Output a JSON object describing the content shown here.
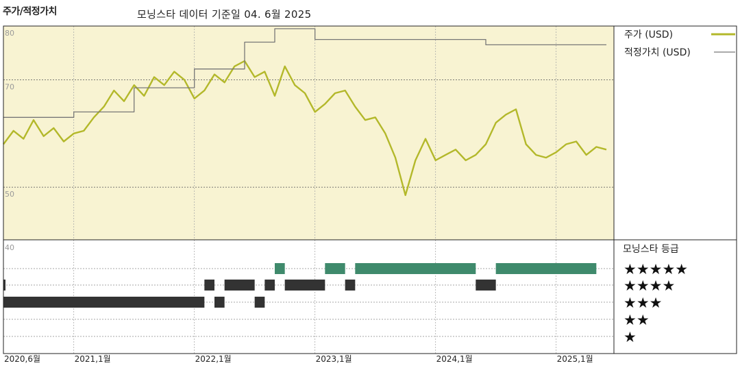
{
  "title": "주가/적정가치",
  "subtitle": "모닝스타 데이터 기준일 04. 6월 2025",
  "colors": {
    "price": "#b3b82a",
    "fair_value": "#777777",
    "plot_bg": "#f8f3d2",
    "grid": "#666666",
    "rating_band_5": "#3f8a6c",
    "rating_band_other": "#333333"
  },
  "chart_data": [
    {
      "type": "line",
      "x_range": [
        "2020-06",
        "2025-06"
      ],
      "ylim": [
        40,
        80
      ],
      "yticks": [
        80,
        70,
        50,
        40
      ],
      "xticks": [
        "2020,6월",
        "2021,1월",
        "2022,1월",
        "2023,1월",
        "2024,1월",
        "2025,1월"
      ],
      "grid": true,
      "legend_position": "right",
      "series": [
        {
          "name": "주가 (USD)",
          "color": "#b3b82a",
          "points": [
            [
              "2020-06",
              58.0
            ],
            [
              "2020-07",
              60.5
            ],
            [
              "2020-08",
              59.0
            ],
            [
              "2020-09",
              62.5
            ],
            [
              "2020-10",
              59.5
            ],
            [
              "2020-11",
              61.0
            ],
            [
              "2020-12",
              58.5
            ],
            [
              "2021-01",
              60.0
            ],
            [
              "2021-02",
              60.5
            ],
            [
              "2021-03",
              63.0
            ],
            [
              "2021-04",
              65.0
            ],
            [
              "2021-05",
              68.0
            ],
            [
              "2021-06",
              66.0
            ],
            [
              "2021-07",
              69.0
            ],
            [
              "2021-08",
              67.0
            ],
            [
              "2021-09",
              70.5
            ],
            [
              "2021-10",
              69.0
            ],
            [
              "2021-11",
              71.5
            ],
            [
              "2021-12",
              70.0
            ],
            [
              "2022-01",
              66.5
            ],
            [
              "2022-02",
              68.0
            ],
            [
              "2022-03",
              71.0
            ],
            [
              "2022-04",
              69.5
            ],
            [
              "2022-05",
              72.5
            ],
            [
              "2022-06",
              73.5
            ],
            [
              "2022-07",
              70.5
            ],
            [
              "2022-08",
              71.5
            ],
            [
              "2022-09",
              67.0
            ],
            [
              "2022-10",
              72.5
            ],
            [
              "2022-11",
              69.0
            ],
            [
              "2022-12",
              67.5
            ],
            [
              "2023-01",
              64.0
            ],
            [
              "2023-02",
              65.5
            ],
            [
              "2023-03",
              67.5
            ],
            [
              "2023-04",
              68.0
            ],
            [
              "2023-05",
              65.0
            ],
            [
              "2023-06",
              62.5
            ],
            [
              "2023-07",
              63.0
            ],
            [
              "2023-08",
              60.0
            ],
            [
              "2023-09",
              55.5
            ],
            [
              "2023-10",
              48.5
            ],
            [
              "2023-11",
              55.0
            ],
            [
              "2023-12",
              59.0
            ],
            [
              "2024-01",
              55.0
            ],
            [
              "2024-02",
              56.0
            ],
            [
              "2024-03",
              57.0
            ],
            [
              "2024-04",
              55.0
            ],
            [
              "2024-05",
              56.0
            ],
            [
              "2024-06",
              58.0
            ],
            [
              "2024-07",
              62.0
            ],
            [
              "2024-08",
              63.5
            ],
            [
              "2024-09",
              64.5
            ],
            [
              "2024-10",
              58.0
            ],
            [
              "2024-11",
              56.0
            ],
            [
              "2024-12",
              55.5
            ],
            [
              "2025-01",
              56.5
            ],
            [
              "2025-02",
              58.0
            ],
            [
              "2025-03",
              58.5
            ],
            [
              "2025-04",
              56.0
            ],
            [
              "2025-05",
              57.5
            ],
            [
              "2025-06",
              57.0
            ]
          ]
        },
        {
          "name": "적정가치 (USD)",
          "color": "#777777",
          "points": [
            [
              "2020-06",
              63.0
            ],
            [
              "2021-01",
              63.0
            ],
            [
              "2021-01",
              64.0
            ],
            [
              "2021-07",
              64.0
            ],
            [
              "2021-07",
              68.5
            ],
            [
              "2022-01",
              68.5
            ],
            [
              "2022-01",
              72.0
            ],
            [
              "2022-06",
              72.0
            ],
            [
              "2022-06",
              77.0
            ],
            [
              "2022-09",
              77.0
            ],
            [
              "2022-09",
              79.5
            ],
            [
              "2023-01",
              79.5
            ],
            [
              "2023-01",
              77.5
            ],
            [
              "2024-06",
              77.5
            ],
            [
              "2024-06",
              76.5
            ],
            [
              "2025-06",
              76.5
            ]
          ]
        }
      ]
    },
    {
      "type": "heatmap",
      "title": "모닝스타 등급",
      "rows": [
        "★★★★★",
        "★★★★",
        "★★★",
        "★★",
        "★"
      ],
      "periods": [
        {
          "stars": 3,
          "start": "2020-06",
          "end": "2022-02"
        },
        {
          "stars": 4,
          "start": "2020-06",
          "end": "2020-06"
        },
        {
          "stars": 4,
          "start": "2022-02",
          "end": "2022-03"
        },
        {
          "stars": 3,
          "start": "2022-03",
          "end": "2022-04"
        },
        {
          "stars": 4,
          "start": "2022-04",
          "end": "2022-07"
        },
        {
          "stars": 3,
          "start": "2022-07",
          "end": "2022-08"
        },
        {
          "stars": 4,
          "start": "2022-08",
          "end": "2022-09"
        },
        {
          "stars": 5,
          "start": "2022-09",
          "end": "2022-10"
        },
        {
          "stars": 4,
          "start": "2022-10",
          "end": "2023-02"
        },
        {
          "stars": 5,
          "start": "2023-02",
          "end": "2023-04"
        },
        {
          "stars": 4,
          "start": "2023-04",
          "end": "2023-05"
        },
        {
          "stars": 5,
          "start": "2023-05",
          "end": "2024-05"
        },
        {
          "stars": 4,
          "start": "2024-05",
          "end": "2024-07"
        },
        {
          "stars": 5,
          "start": "2024-07",
          "end": "2025-05"
        }
      ]
    }
  ]
}
